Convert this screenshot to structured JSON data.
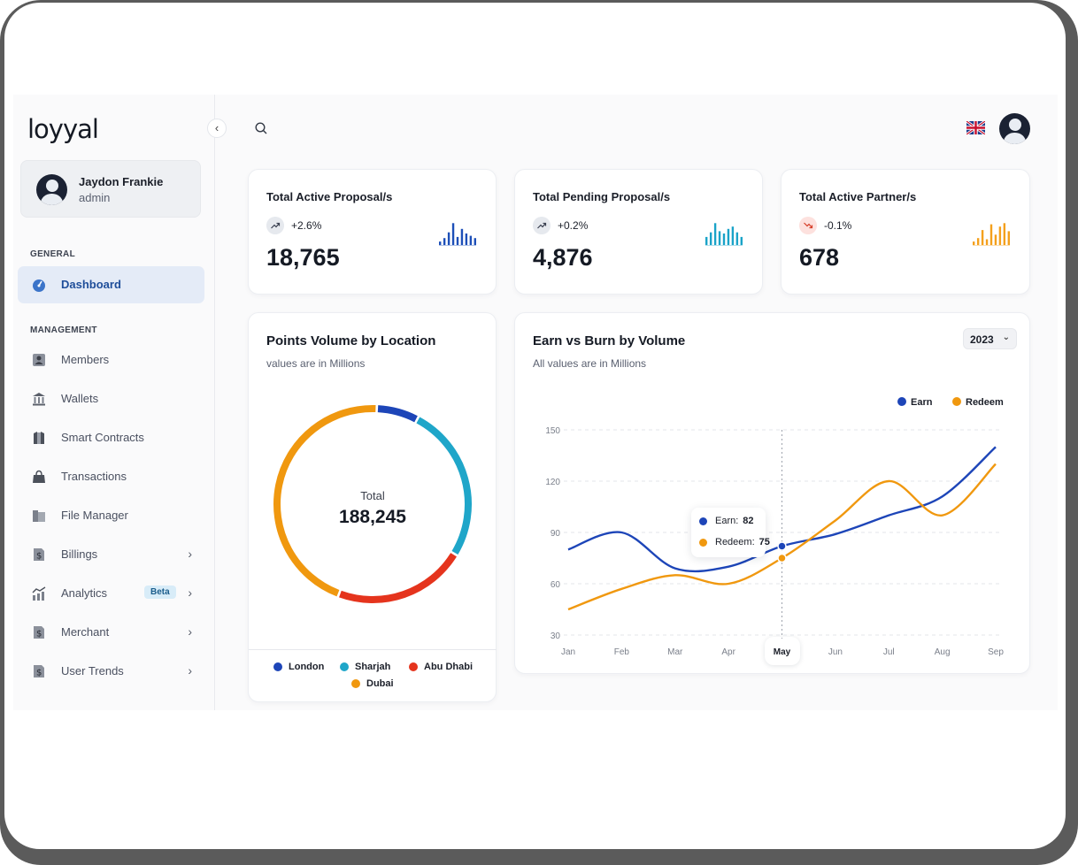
{
  "brand": {
    "logo_text": "loyyal"
  },
  "profile": {
    "name": "Jaydon Frankie",
    "role": "admin"
  },
  "sidebar": {
    "general_label": "GENERAL",
    "management_label": "MANAGEMENT",
    "items": [
      {
        "label": "Dashboard",
        "icon": "dashboard-gauge-icon",
        "active": true
      },
      {
        "label": "Members",
        "icon": "members-icon"
      },
      {
        "label": "Wallets",
        "icon": "bank-icon"
      },
      {
        "label": "Smart Contracts",
        "icon": "contract-icon"
      },
      {
        "label": "Transactions",
        "icon": "bag-icon"
      },
      {
        "label": "File Manager",
        "icon": "folder-icon"
      },
      {
        "label": "Billings",
        "icon": "dollar-file-icon",
        "has_submenu": true
      },
      {
        "label": "Analytics",
        "icon": "analytics-chart-icon",
        "has_submenu": true,
        "badge": "Beta"
      },
      {
        "label": "Merchant",
        "icon": "dollar-file-icon",
        "has_submenu": true
      },
      {
        "label": "User Trends",
        "icon": "dollar-file-icon",
        "has_submenu": true
      }
    ]
  },
  "topbar": {
    "search_icon": "search-icon",
    "language_flag": "uk-flag-icon"
  },
  "stats": [
    {
      "title": "Total Active Proposal/s",
      "trend": "+2.6%",
      "direction": "up",
      "value": "18,765",
      "color": "#1d4fb8",
      "spark": [
        0.15,
        0.3,
        0.55,
        0.95,
        0.35,
        0.7,
        0.5,
        0.4,
        0.3
      ]
    },
    {
      "title": "Total Pending Proposal/s",
      "trend": "+0.2%",
      "direction": "up",
      "value": "4,876",
      "color": "#1aa3c8",
      "spark": [
        0.35,
        0.55,
        0.95,
        0.6,
        0.5,
        0.7,
        0.8,
        0.55,
        0.35
      ]
    },
    {
      "title": "Total Active Partner/s",
      "trend": "-0.1%",
      "direction": "down",
      "value": "678",
      "color": "#f4a01c",
      "spark": [
        0.15,
        0.3,
        0.65,
        0.25,
        0.9,
        0.45,
        0.8,
        0.95,
        0.6
      ]
    }
  ],
  "donut": {
    "title": "Points Volume by Location",
    "subtitle": "values are in Millions",
    "total_label": "Total",
    "total_value": "188,245",
    "segments": [
      {
        "name": "London",
        "color": "#1d45b8",
        "share": 0.07
      },
      {
        "name": "Sharjah",
        "color": "#1fa6c9",
        "share": 0.26
      },
      {
        "name": "Abu Dhabi",
        "color": "#e5341d",
        "share": 0.22
      },
      {
        "name": "Dubai",
        "color": "#f0980f",
        "share": 0.45
      }
    ]
  },
  "chart_data": {
    "type": "line",
    "title": "Earn vs Burn by Volume",
    "subtitle": "All values are in Millions",
    "year": "2023",
    "x": [
      "Jan",
      "Feb",
      "Mar",
      "Apr",
      "May",
      "Jun",
      "Jul",
      "Aug",
      "Sep"
    ],
    "ylim": [
      30,
      150
    ],
    "yticks": [
      30,
      60,
      90,
      120,
      150
    ],
    "grid": true,
    "legend_position": "top-right",
    "series": [
      {
        "name": "Earn",
        "color": "#1d45b8",
        "values": [
          80,
          90,
          69,
          70,
          82,
          89,
          100,
          111,
          140
        ]
      },
      {
        "name": "Redeem",
        "color": "#f0980f",
        "values": [
          45,
          57,
          65,
          60,
          75,
          97,
          120,
          100,
          130
        ]
      }
    ],
    "highlight": {
      "month": "May",
      "earn_label": "Earn:",
      "earn_value": "82",
      "redeem_label": "Redeem:",
      "redeem_value": "75"
    }
  }
}
